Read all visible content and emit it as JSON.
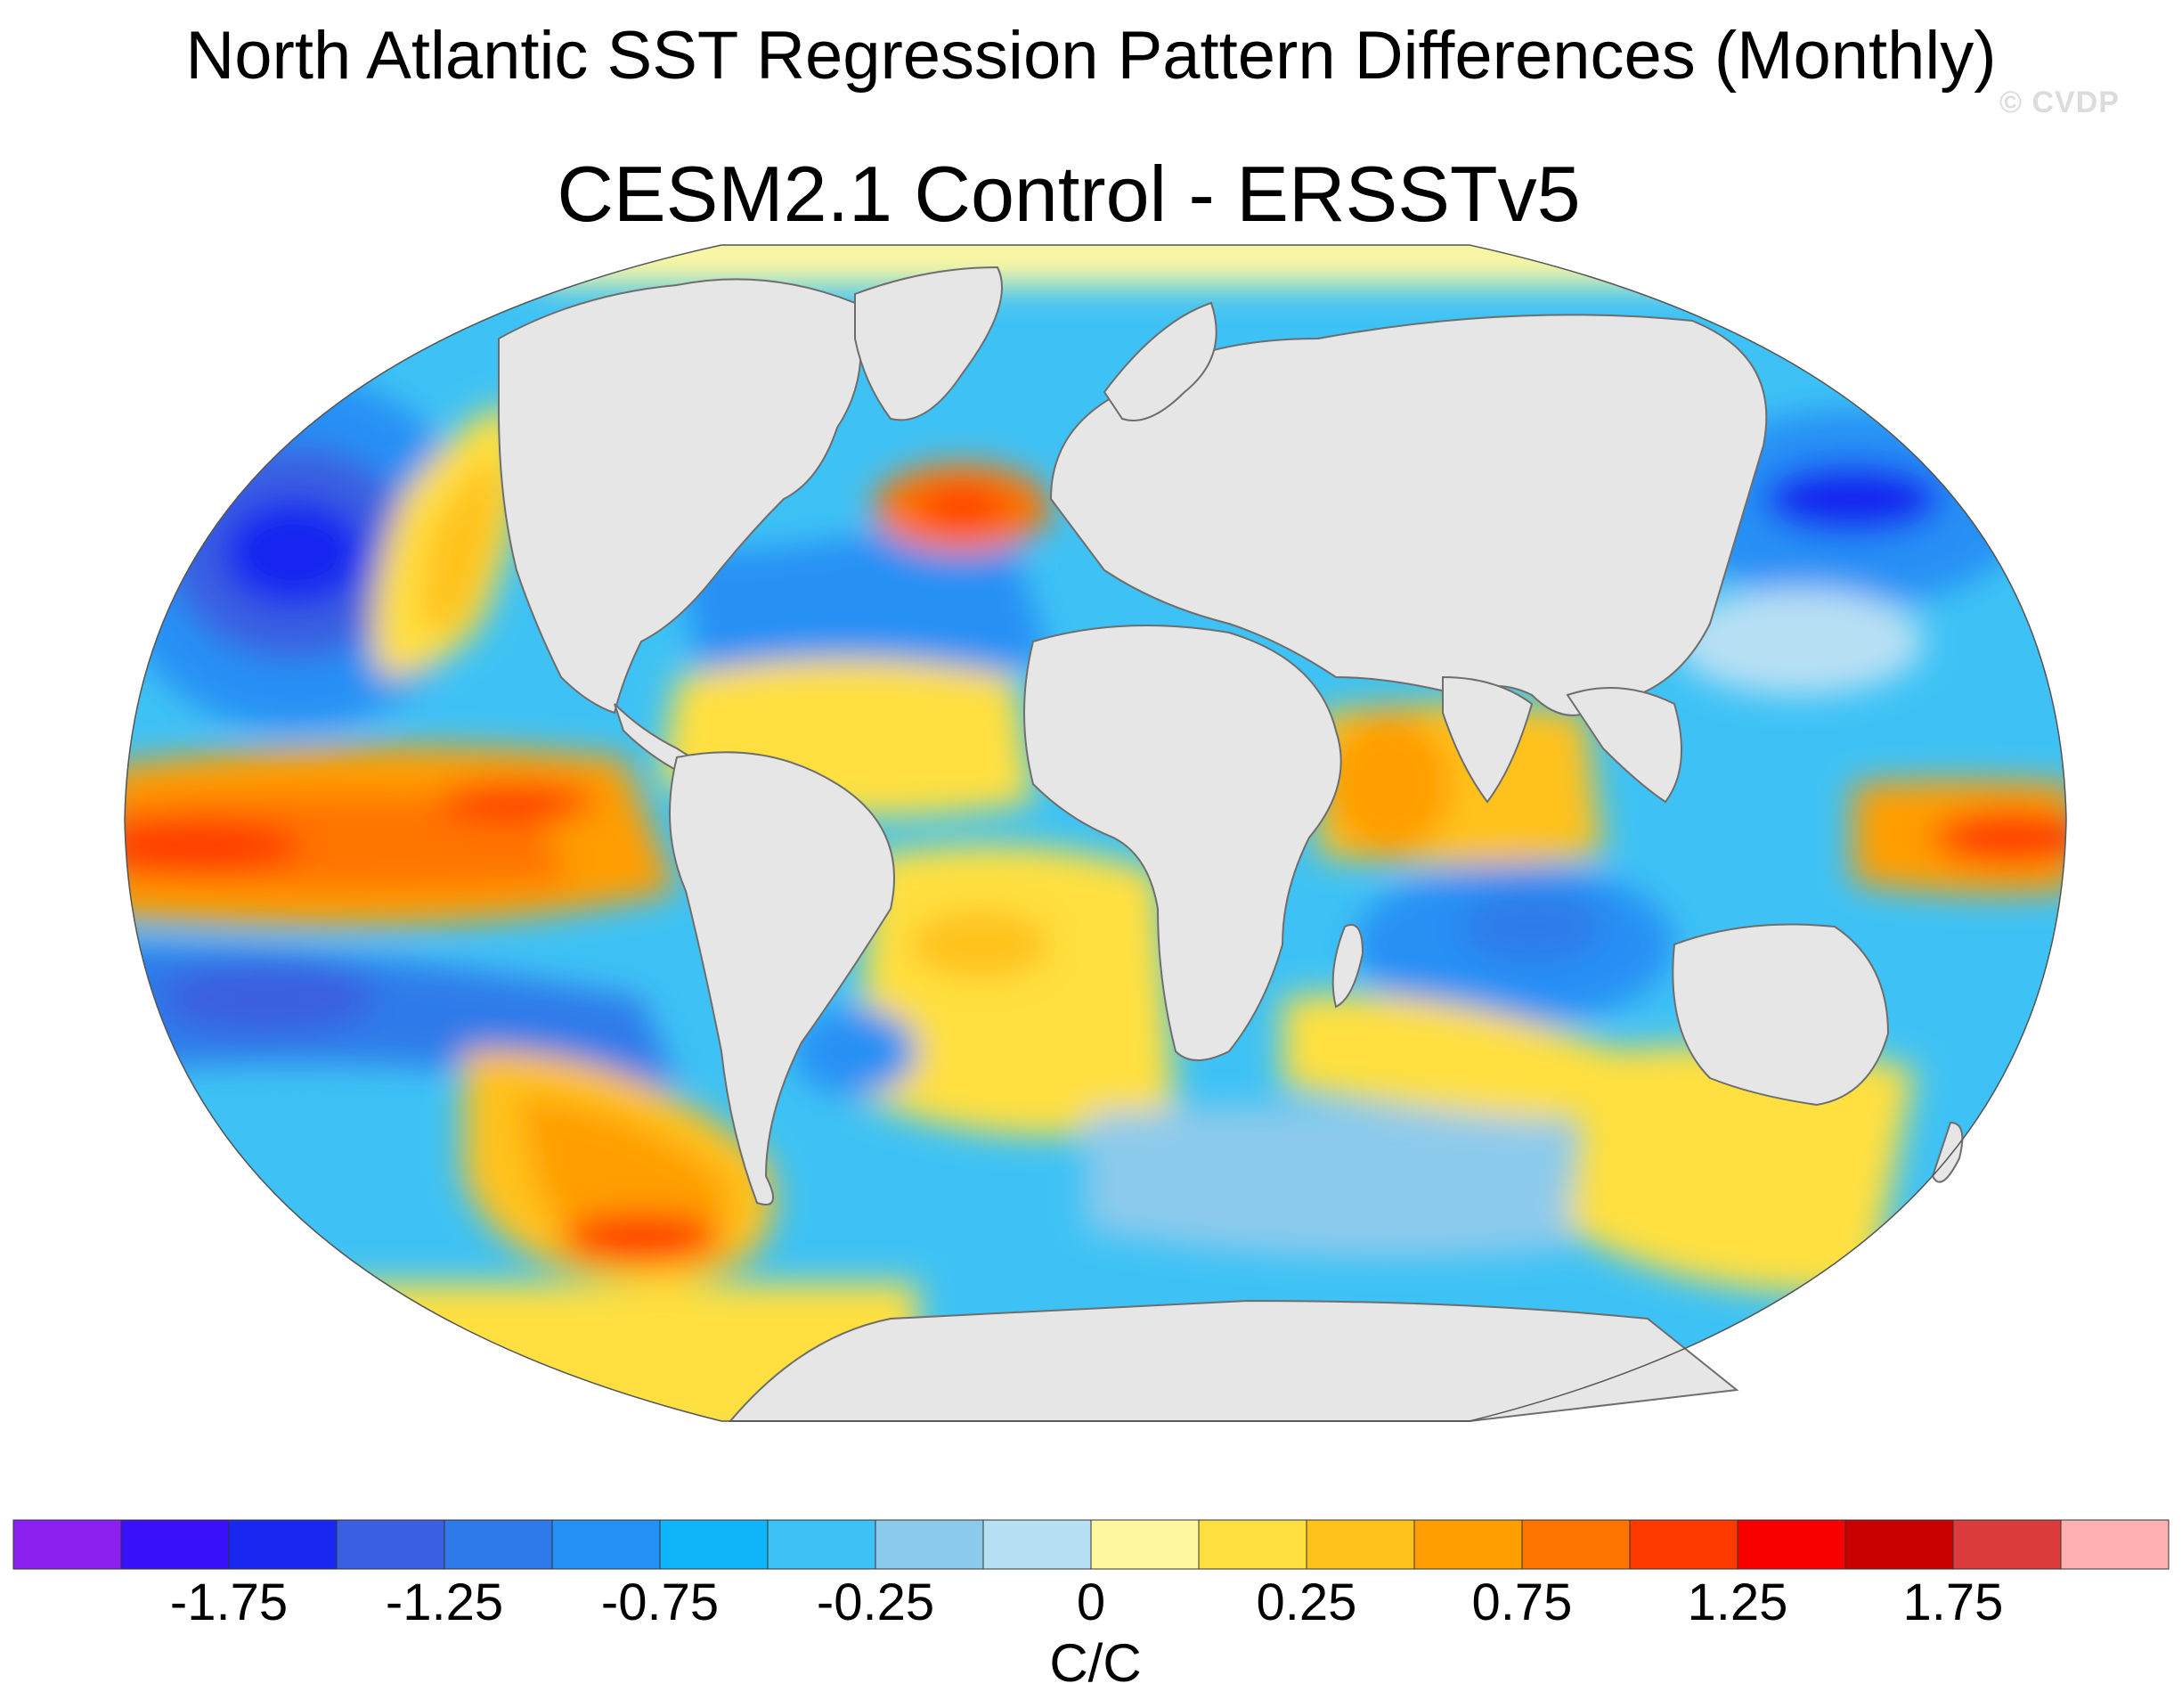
{
  "title": "North Atlantic SST Regression Pattern Differences (Monthly)",
  "subtitle": "CESM2.1 Control - ERSSTv5",
  "watermark": "© CVDP",
  "colorbar": {
    "units": "C/C",
    "tick_labels": [
      "-1.75",
      "-1.25",
      "-0.75",
      "-0.25",
      "0",
      "0.25",
      "0.75",
      "1.25",
      "1.75"
    ],
    "colors": [
      "#8c20f0",
      "#3a10fa",
      "#1828f0",
      "#3a5fe0",
      "#2f7aea",
      "#2590f5",
      "#10b4f8",
      "#3ec2f5",
      "#8ccaec",
      "#b8e0f4",
      "#fff8a0",
      "#ffe040",
      "#ffc21a",
      "#ff9e00",
      "#ff7400",
      "#ff3a00",
      "#f80000",
      "#c80000",
      "#dc3c3c",
      "#ffb0b0"
    ]
  },
  "map": {
    "projection": "Robinson",
    "land_color": "#e6e6e6",
    "coastline_color": "#6e6e6e"
  }
}
